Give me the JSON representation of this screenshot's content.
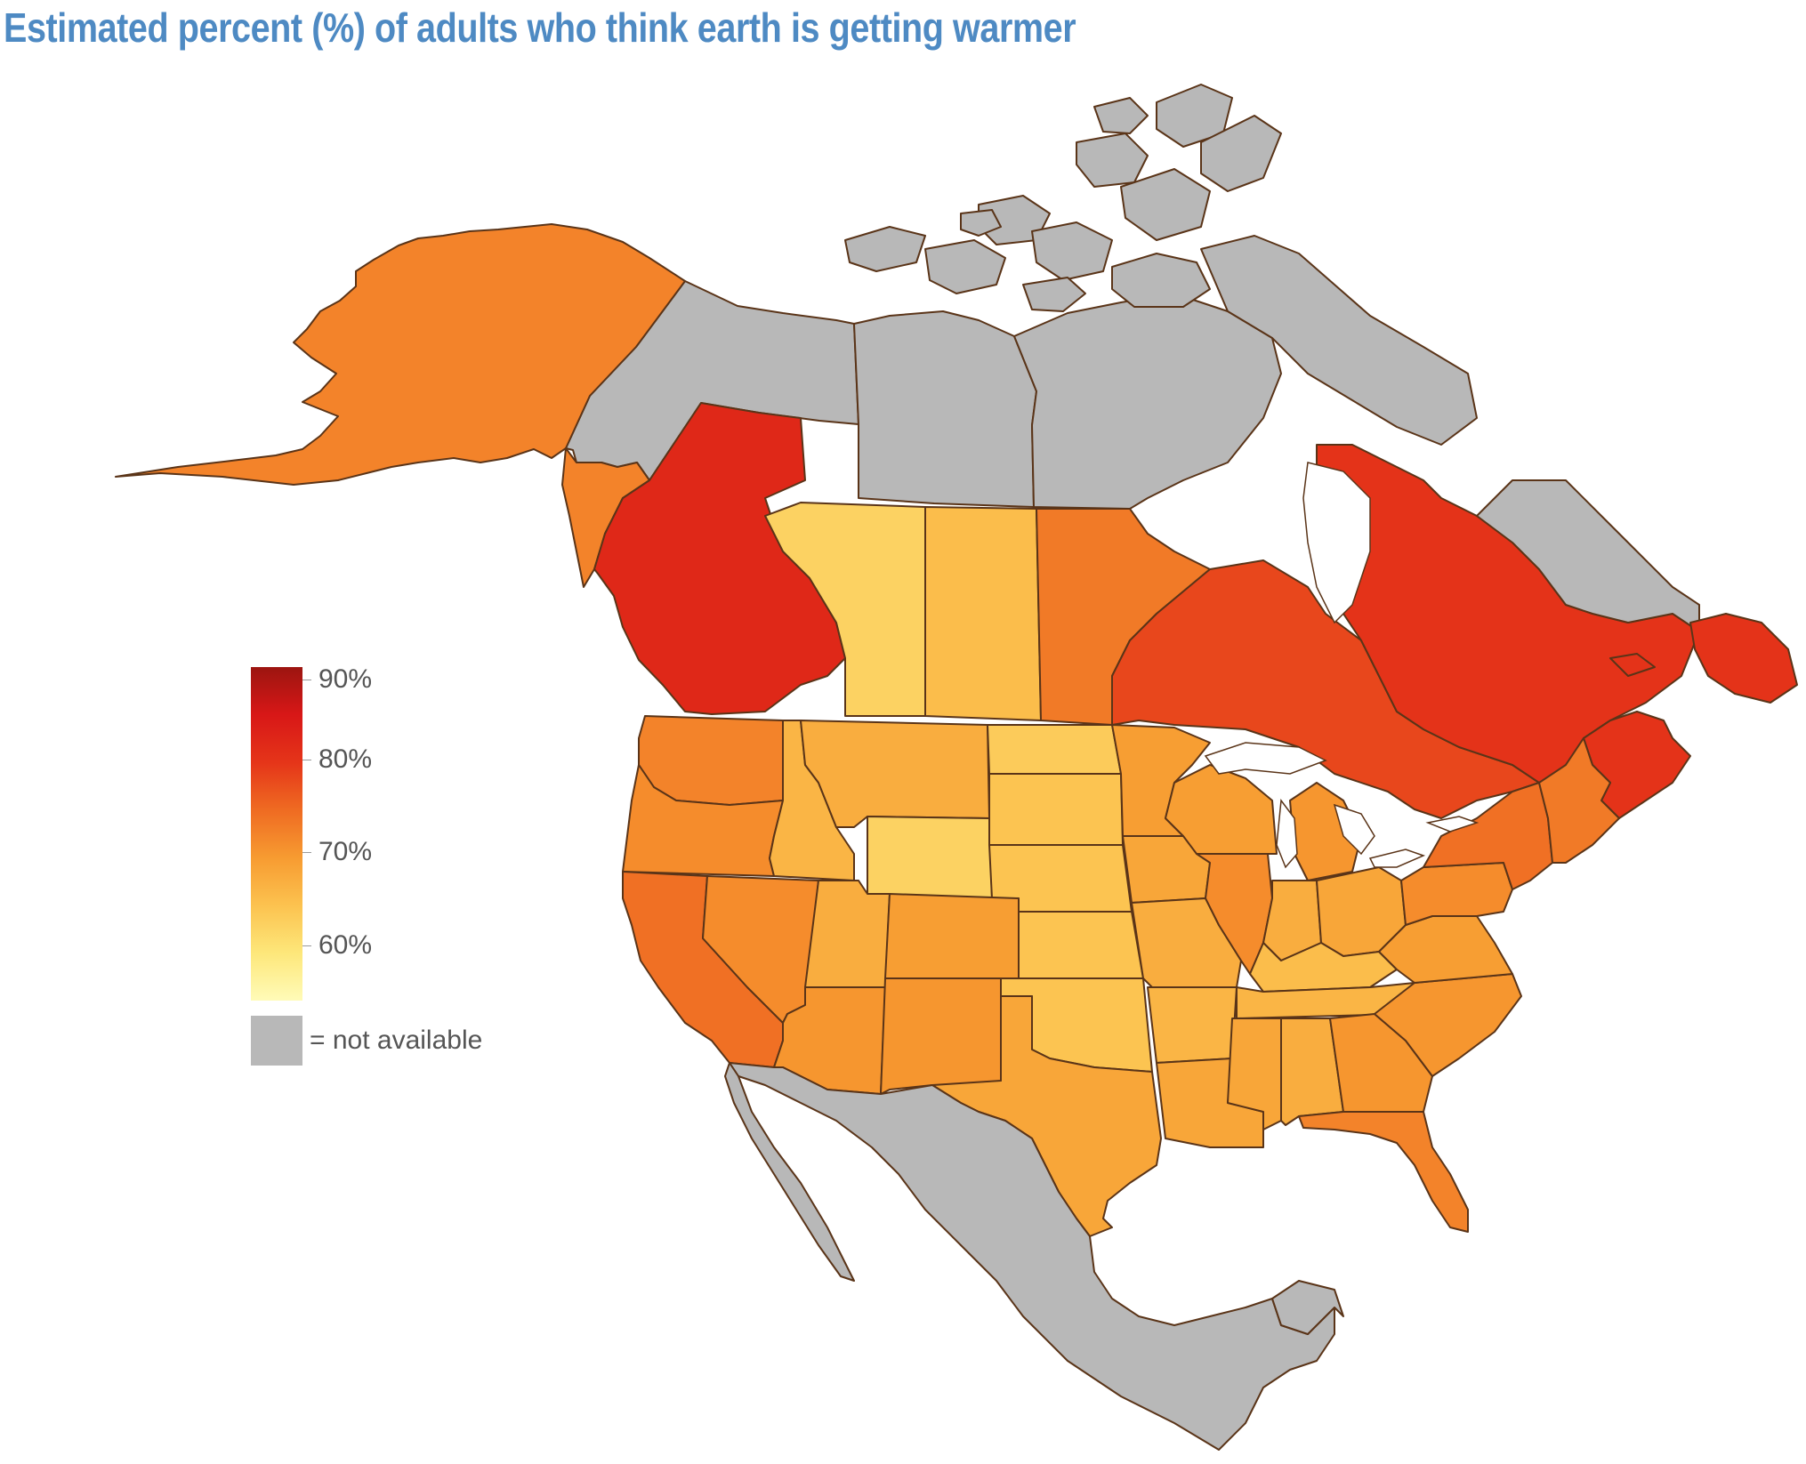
{
  "title": "Estimated percent (%) of adults who think earth is getting warmer",
  "colors": {
    "title": "#4e8ac3",
    "not_available": "#b8b8b8",
    "border": "#5a3418",
    "ramp": [
      "#fffbb8",
      "#fde77a",
      "#fcc24f",
      "#f79b31",
      "#ef6b22",
      "#e53519",
      "#d81717",
      "#9c1510"
    ]
  },
  "legend": {
    "scale_min": 54,
    "scale_max": 90,
    "ticks": [
      {
        "value": 90,
        "label": "90%"
      },
      {
        "value": 80,
        "label": "80%"
      },
      {
        "value": 70,
        "label": "70%"
      },
      {
        "value": 60,
        "label": "60%"
      }
    ],
    "not_available_label": "= not available"
  },
  "regions": [
    {
      "name": "alaska",
      "value": 72
    },
    {
      "name": "yukon",
      "value": null
    },
    {
      "name": "northwest-territories",
      "value": null
    },
    {
      "name": "nunavut",
      "value": null
    },
    {
      "name": "british-columbia",
      "value": 82
    },
    {
      "name": "alberta",
      "value": 62
    },
    {
      "name": "saskatchewan",
      "value": 65
    },
    {
      "name": "manitoba",
      "value": 73
    },
    {
      "name": "ontario",
      "value": 78
    },
    {
      "name": "quebec",
      "value": 80
    },
    {
      "name": "labrador",
      "value": null
    },
    {
      "name": "atlantic-canada",
      "value": 80
    },
    {
      "name": "washington",
      "value": 72
    },
    {
      "name": "oregon",
      "value": 71
    },
    {
      "name": "california",
      "value": 74
    },
    {
      "name": "nevada",
      "value": 71
    },
    {
      "name": "idaho",
      "value": 66
    },
    {
      "name": "montana",
      "value": 67
    },
    {
      "name": "wyoming",
      "value": 62
    },
    {
      "name": "utah",
      "value": 67
    },
    {
      "name": "arizona",
      "value": 70
    },
    {
      "name": "colorado",
      "value": 69
    },
    {
      "name": "new-mexico",
      "value": 70
    },
    {
      "name": "north-dakota",
      "value": 63
    },
    {
      "name": "south-dakota",
      "value": 64
    },
    {
      "name": "nebraska",
      "value": 64
    },
    {
      "name": "kansas",
      "value": 64
    },
    {
      "name": "oklahoma",
      "value": 64
    },
    {
      "name": "texas",
      "value": 68
    },
    {
      "name": "minnesota",
      "value": 69
    },
    {
      "name": "iowa",
      "value": 68
    },
    {
      "name": "missouri",
      "value": 67
    },
    {
      "name": "arkansas",
      "value": 66
    },
    {
      "name": "louisiana",
      "value": 68
    },
    {
      "name": "wisconsin",
      "value": 69
    },
    {
      "name": "illinois",
      "value": 71
    },
    {
      "name": "michigan",
      "value": 70
    },
    {
      "name": "indiana",
      "value": 67
    },
    {
      "name": "ohio",
      "value": 68
    },
    {
      "name": "kentucky",
      "value": 65
    },
    {
      "name": "tennessee",
      "value": 66
    },
    {
      "name": "mississippi",
      "value": 68
    },
    {
      "name": "alabama",
      "value": 67
    },
    {
      "name": "georgia",
      "value": 70
    },
    {
      "name": "florida",
      "value": 72
    },
    {
      "name": "carolinas",
      "value": 70
    },
    {
      "name": "virginia-wv",
      "value": 69
    },
    {
      "name": "pennsylvania",
      "value": 71
    },
    {
      "name": "new-york",
      "value": 74
    },
    {
      "name": "new-england",
      "value": 73
    },
    {
      "name": "mexico",
      "value": null
    },
    {
      "name": "greenland-edge",
      "value": null
    }
  ]
}
